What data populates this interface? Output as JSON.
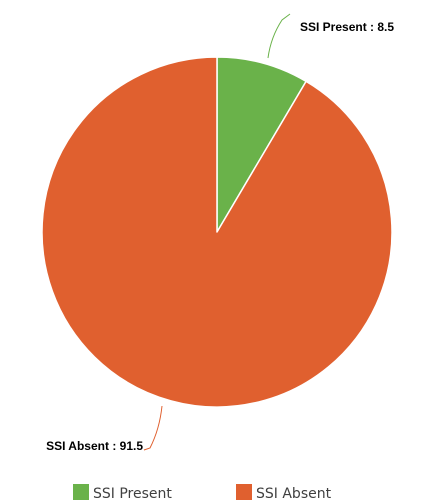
{
  "colors": {
    "present": "#6ab24a",
    "absent": "#e0602f",
    "leader": "#6e8f45",
    "slice_border": "#ffffff"
  },
  "chart_data": {
    "type": "pie",
    "title": "",
    "start_angle_deg": 0,
    "direction": "clockwise",
    "legend_position": "bottom",
    "slices": [
      {
        "label": "SSI Present",
        "value": 8.5,
        "data_label": "SSI Present : 8.5",
        "color_key": "present"
      },
      {
        "label": "SSI Absent",
        "value": 91.5,
        "data_label": "SSI Absent : 91.5",
        "color_key": "absent"
      }
    ]
  }
}
